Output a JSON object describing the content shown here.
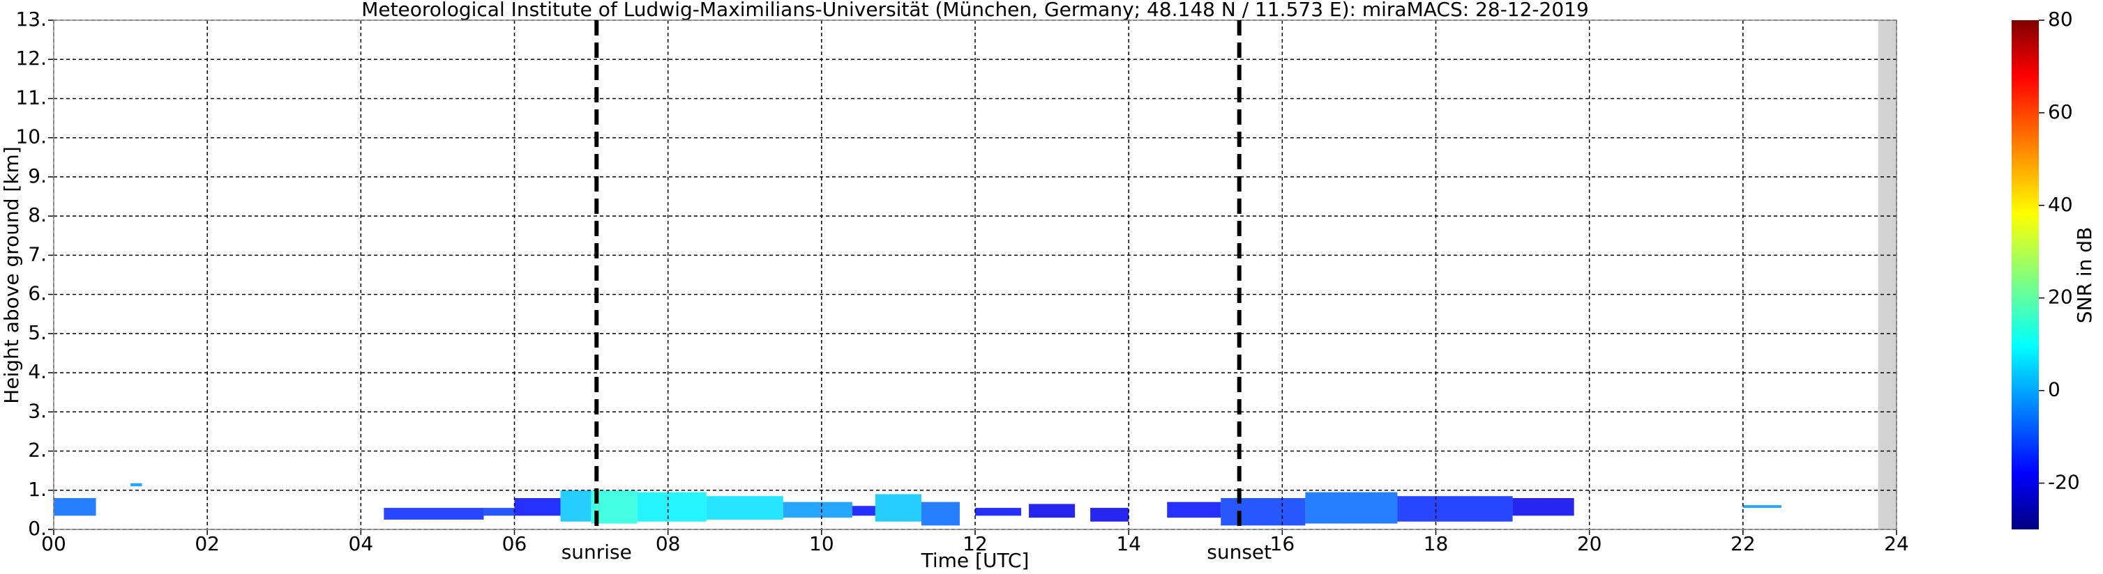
{
  "chart_data": {
    "type": "heatmap",
    "title": "Meteorological Institute of Ludwig-Maximilians-Universität (München, Germany; 48.148 N / 11.573 E):    miraMACS: 28-12-2019",
    "x_label": "Time [UTC]",
    "y_label": "Height above ground [km]",
    "xlim": [
      0,
      24
    ],
    "xticks": [
      {
        "value": 0,
        "label": "00"
      },
      {
        "value": 2,
        "label": "02"
      },
      {
        "value": 4,
        "label": "04"
      },
      {
        "value": 6,
        "label": "06"
      },
      {
        "value": 8,
        "label": "08"
      },
      {
        "value": 10,
        "label": "10"
      },
      {
        "value": 12,
        "label": "12"
      },
      {
        "value": 14,
        "label": "14"
      },
      {
        "value": 16,
        "label": "16"
      },
      {
        "value": 18,
        "label": "18"
      },
      {
        "value": 20,
        "label": "20"
      },
      {
        "value": 22,
        "label": "22"
      },
      {
        "value": 24,
        "label": "24"
      }
    ],
    "ylim": [
      0,
      13
    ],
    "yticks": [
      {
        "value": 0,
        "label": "0."
      },
      {
        "value": 1,
        "label": "1."
      },
      {
        "value": 2,
        "label": "2."
      },
      {
        "value": 3,
        "label": "3."
      },
      {
        "value": 4,
        "label": "4."
      },
      {
        "value": 5,
        "label": "5."
      },
      {
        "value": 6,
        "label": "6."
      },
      {
        "value": 7,
        "label": "7."
      },
      {
        "value": 8,
        "label": "8."
      },
      {
        "value": 9,
        "label": "9."
      },
      {
        "value": 10,
        "label": "10."
      },
      {
        "value": 11,
        "label": "11."
      },
      {
        "value": 12,
        "label": "12."
      },
      {
        "value": 13,
        "label": "13."
      }
    ],
    "grid": true,
    "colorbar": {
      "label": "SNR in dB",
      "lim": [
        -30,
        80
      ],
      "ticks": [
        -20,
        0,
        20,
        40,
        60,
        80
      ],
      "colormap": "jet"
    },
    "annotations": [
      {
        "text": "sunrise",
        "x": 7.07
      },
      {
        "text": "sunset",
        "x": 15.44
      }
    ],
    "no_data": [
      23.76,
      24
    ],
    "cells": [
      {
        "x": [
          0.0,
          0.55
        ],
        "y": [
          0.35,
          0.8
        ],
        "value": -5
      },
      {
        "x": [
          1.0,
          1.15
        ],
        "y": [
          1.1,
          1.18
        ],
        "value": 0
      },
      {
        "x": [
          4.3,
          5.6
        ],
        "y": [
          0.25,
          0.55
        ],
        "value": -12
      },
      {
        "x": [
          5.6,
          6.0
        ],
        "y": [
          0.35,
          0.55
        ],
        "value": -10
      },
      {
        "x": [
          6.0,
          6.6
        ],
        "y": [
          0.35,
          0.8
        ],
        "value": -15
      },
      {
        "x": [
          6.6,
          7.0
        ],
        "y": [
          0.2,
          1.0
        ],
        "value": 5
      },
      {
        "x": [
          7.0,
          7.6
        ],
        "y": [
          0.15,
          1.0
        ],
        "value": 15
      },
      {
        "x": [
          7.6,
          8.5
        ],
        "y": [
          0.2,
          0.95
        ],
        "value": 10
      },
      {
        "x": [
          8.5,
          9.5
        ],
        "y": [
          0.25,
          0.85
        ],
        "value": 8
      },
      {
        "x": [
          9.5,
          10.4
        ],
        "y": [
          0.3,
          0.7
        ],
        "value": 0
      },
      {
        "x": [
          10.4,
          10.7
        ],
        "y": [
          0.35,
          0.6
        ],
        "value": -15
      },
      {
        "x": [
          10.7,
          11.3
        ],
        "y": [
          0.2,
          0.9
        ],
        "value": 5
      },
      {
        "x": [
          11.3,
          11.8
        ],
        "y": [
          0.1,
          0.7
        ],
        "value": -5
      },
      {
        "x": [
          12.0,
          12.6
        ],
        "y": [
          0.35,
          0.55
        ],
        "value": -15
      },
      {
        "x": [
          12.7,
          13.3
        ],
        "y": [
          0.3,
          0.65
        ],
        "value": -18
      },
      {
        "x": [
          13.5,
          14.0
        ],
        "y": [
          0.2,
          0.55
        ],
        "value": -18
      },
      {
        "x": [
          14.5,
          15.2
        ],
        "y": [
          0.3,
          0.7
        ],
        "value": -15
      },
      {
        "x": [
          15.2,
          16.3
        ],
        "y": [
          0.1,
          0.8
        ],
        "value": -10
      },
      {
        "x": [
          16.3,
          17.5
        ],
        "y": [
          0.15,
          0.95
        ],
        "value": -5
      },
      {
        "x": [
          17.5,
          19.0
        ],
        "y": [
          0.2,
          0.85
        ],
        "value": -12
      },
      {
        "x": [
          19.0,
          19.8
        ],
        "y": [
          0.35,
          0.8
        ],
        "value": -18
      },
      {
        "x": [
          22.0,
          22.5
        ],
        "y": [
          0.55,
          0.62
        ],
        "value": 0
      }
    ]
  }
}
